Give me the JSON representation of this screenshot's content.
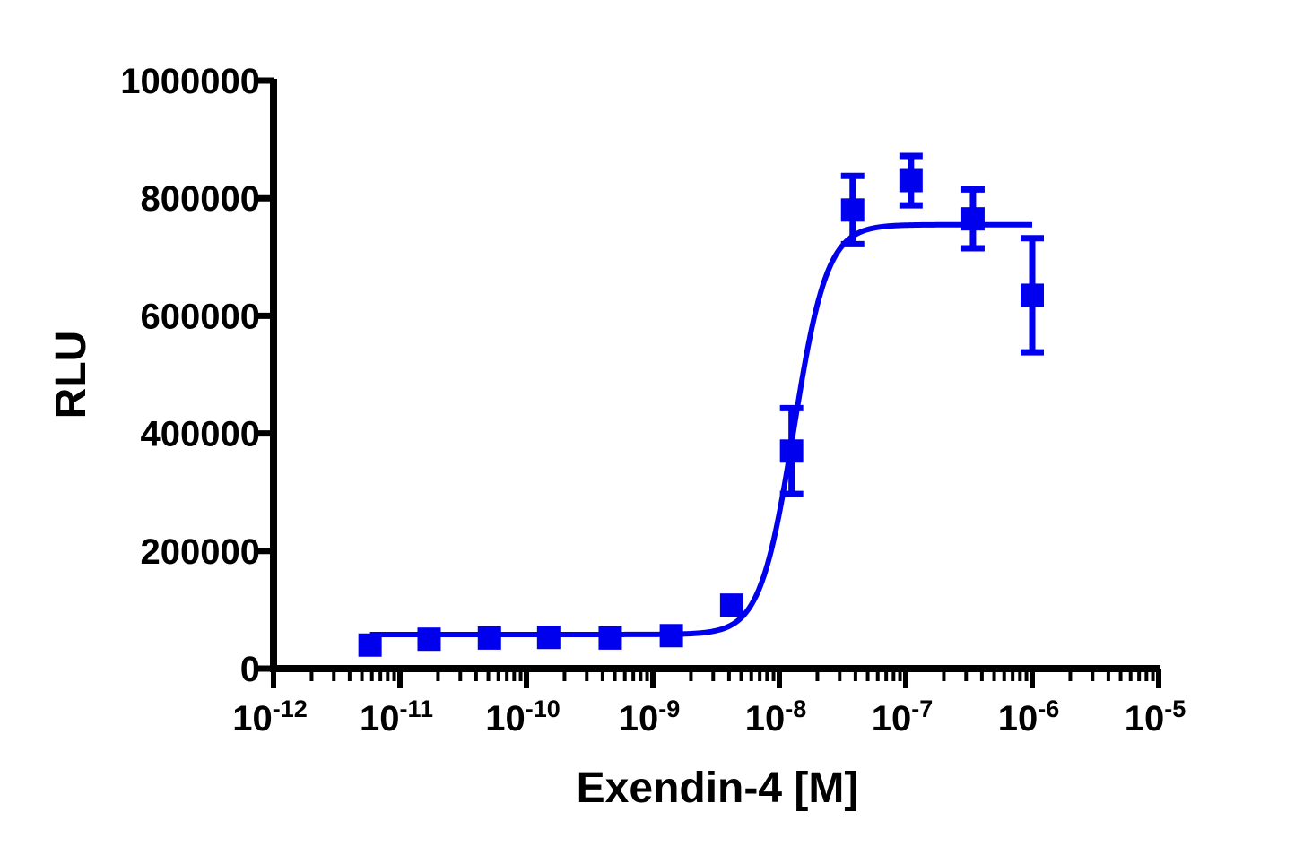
{
  "chart_data": {
    "type": "scatter",
    "xlabel": "Exendin-4 [M]",
    "ylabel": "RLU",
    "x_scale": "log10",
    "xlim": [
      1e-12,
      1e-05
    ],
    "ylim": [
      0,
      1000000
    ],
    "y_ticks": [
      0,
      200000,
      400000,
      600000,
      800000,
      1000000
    ],
    "y_tick_labels": [
      "0",
      "200000",
      "400000",
      "600000",
      "800000",
      "1000000"
    ],
    "x_tick_labels": [
      {
        "base": "10",
        "exp": "-12"
      },
      {
        "base": "10",
        "exp": "-11"
      },
      {
        "base": "10",
        "exp": "-10"
      },
      {
        "base": "10",
        "exp": "-9"
      },
      {
        "base": "10",
        "exp": "-8"
      },
      {
        "base": "10",
        "exp": "-7"
      },
      {
        "base": "10",
        "exp": "-6"
      },
      {
        "base": "10",
        "exp": "-5"
      }
    ],
    "color": "#0000ee",
    "grid": false,
    "series": [
      {
        "x": [
          5.8e-12,
          1.7e-11,
          5.1e-11,
          1.5e-10,
          4.6e-10,
          1.4e-09,
          4.2e-09,
          1.25e-08,
          3.8e-08,
          1.1e-07,
          3.4e-07,
          1e-06
        ],
        "y": [
          40000,
          50000,
          52000,
          53000,
          52000,
          56000,
          108000,
          370000,
          780000,
          830000,
          765000,
          635000
        ],
        "err": [
          0,
          0,
          0,
          0,
          0,
          0,
          0,
          73000,
          58000,
          42000,
          50000,
          97000
        ]
      }
    ],
    "fit": {
      "type": "sigmoidal",
      "bottom": 58000,
      "top": 755000,
      "ec50": 1.3e-08,
      "hill": 3.3,
      "x_range": [
        5.8e-12,
        1e-06
      ]
    }
  }
}
